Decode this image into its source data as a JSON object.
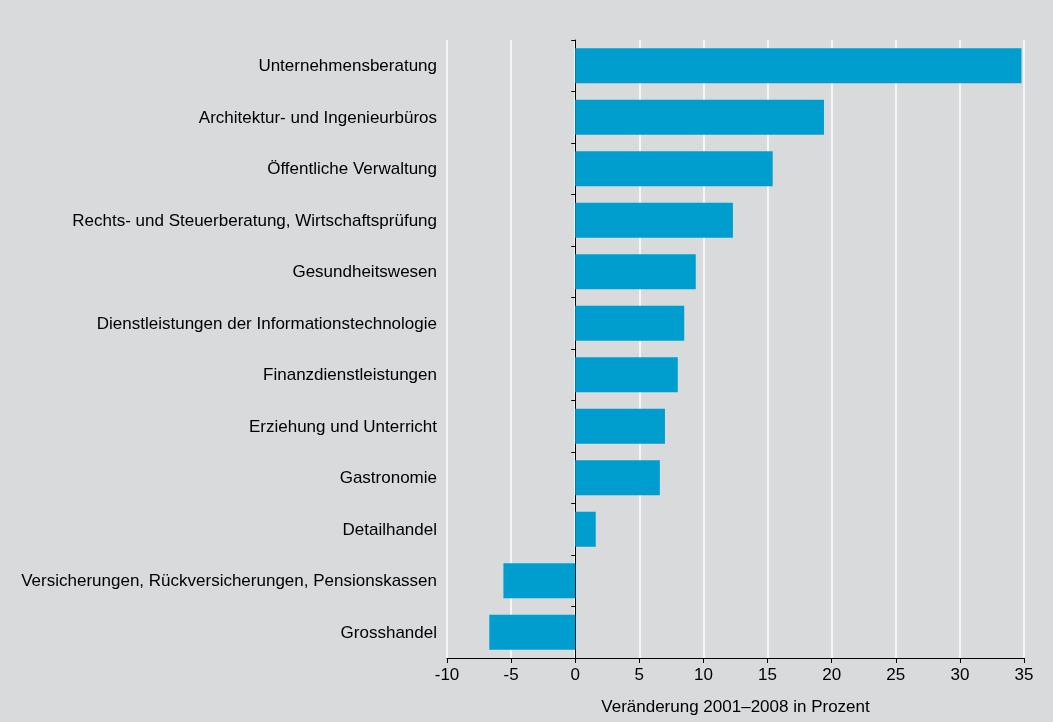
{
  "chart_data": {
    "type": "bar",
    "orientation": "horizontal",
    "xlabel": "Veränderung 2001–2008 in Prozent",
    "categories": [
      "Unternehmensberatung",
      "Architektur- und Ingenieurbüros",
      "Öffentliche Verwaltung",
      "Rechts- und Steuerberatung, Wirtschaftsprüfung",
      "Gesundheitswesen",
      "Dienstleistungen der Informationstechnologie",
      "Finanzdienstleistungen",
      "Erziehung und Unterricht",
      "Gastronomie",
      "Detailhandel",
      "Versicherungen, Rückversicherungen, Pensionskassen",
      "Grosshandel"
    ],
    "values": [
      34.8,
      19.4,
      15.4,
      12.3,
      9.4,
      8.5,
      8.0,
      7.0,
      6.6,
      1.6,
      -5.6,
      -6.7
    ],
    "color": "#009ecf",
    "xlim": [
      -10,
      35
    ],
    "xticks": [
      -10,
      -5,
      0,
      5,
      10,
      15,
      20,
      25,
      30,
      35
    ],
    "grid": "x"
  }
}
